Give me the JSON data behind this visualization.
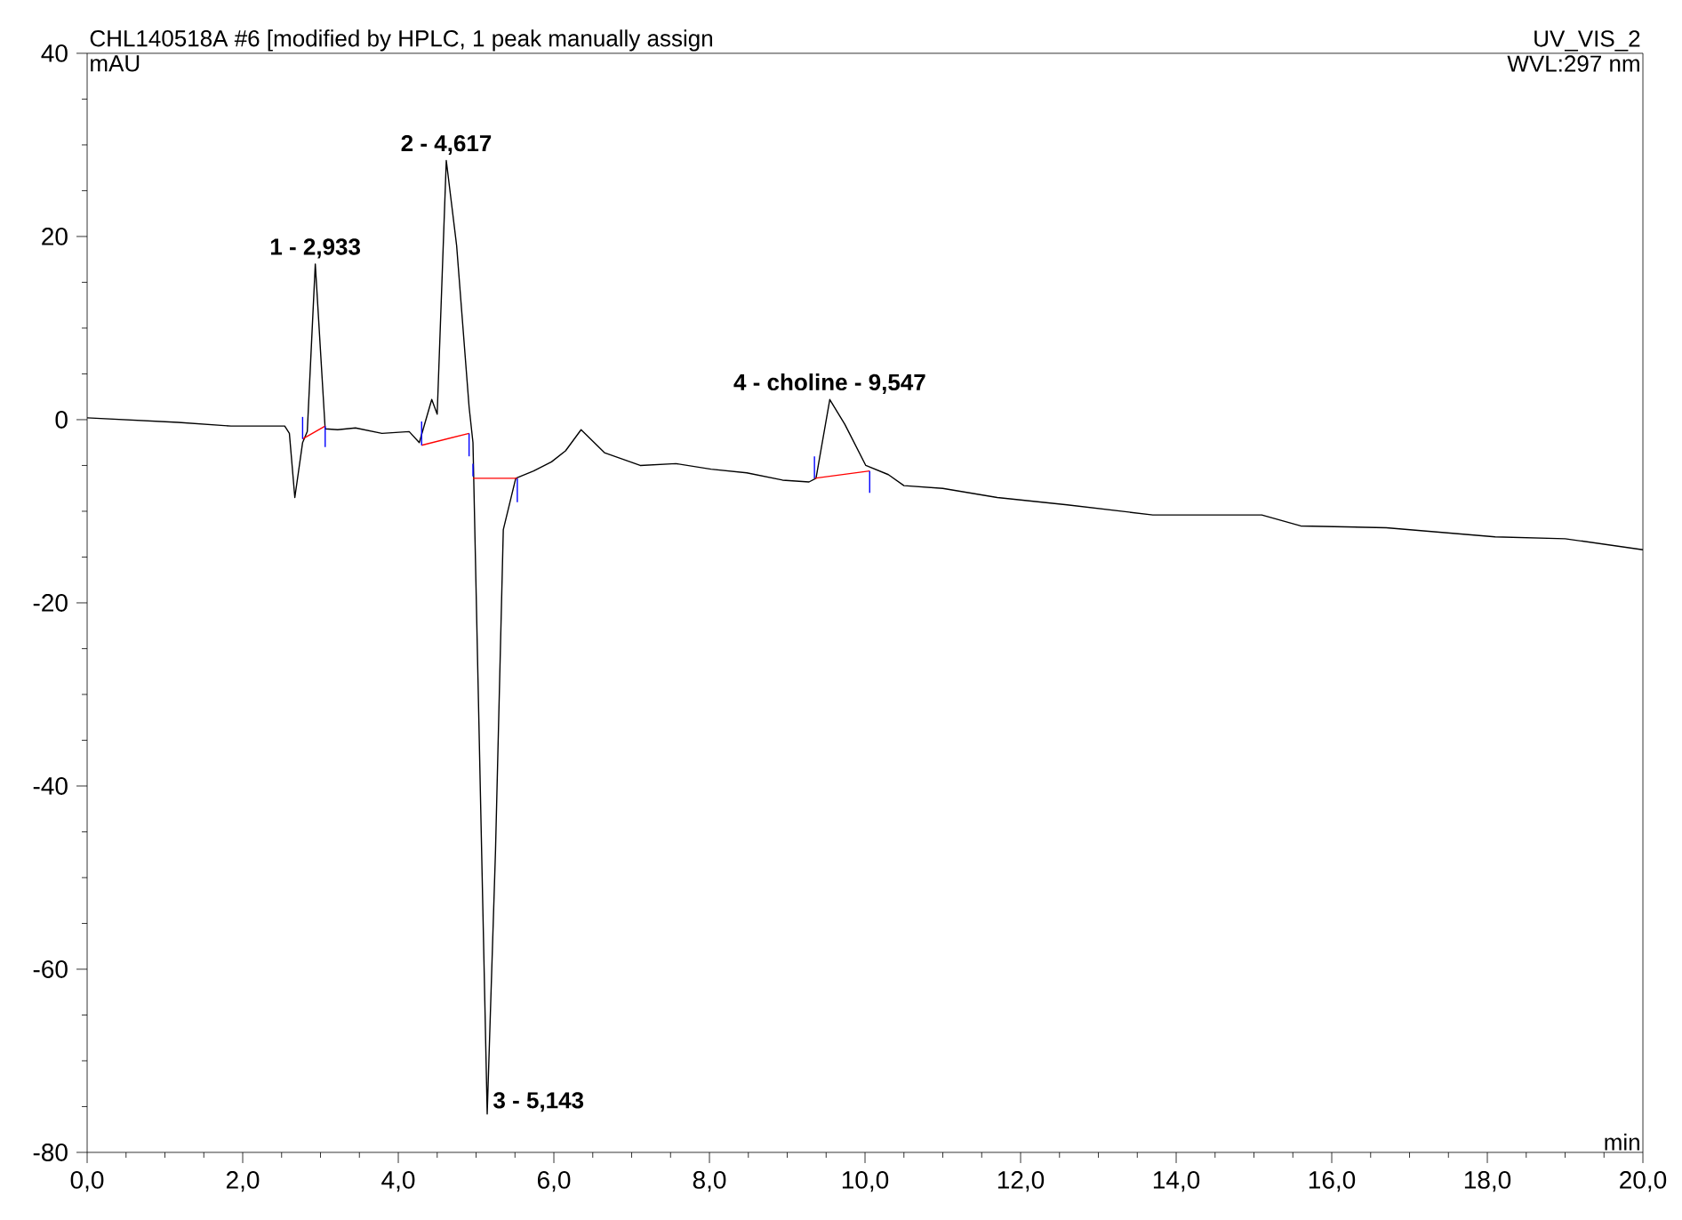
{
  "chart_data": {
    "type": "line",
    "title": "CHL140518A #6 [modified by HPLC, 1 peak manually assign",
    "xlabel": "min",
    "ylabel": "mAU",
    "xlim": [
      0,
      20
    ],
    "ylim": [
      -80,
      40
    ],
    "xticks": [
      {
        "value": 0,
        "label": "0,0"
      },
      {
        "value": 2,
        "label": "2,0"
      },
      {
        "value": 4,
        "label": "4,0"
      },
      {
        "value": 6,
        "label": "6,0"
      },
      {
        "value": 8,
        "label": "8,0"
      },
      {
        "value": 10,
        "label": "10,0"
      },
      {
        "value": 12,
        "label": "12,0"
      },
      {
        "value": 14,
        "label": "14,0"
      },
      {
        "value": 16,
        "label": "16,0"
      },
      {
        "value": 18,
        "label": "18,0"
      },
      {
        "value": 20,
        "label": "20,0"
      }
    ],
    "yticks": [
      -80,
      -60,
      -40,
      -20,
      0,
      20,
      40
    ],
    "grid": false,
    "legend": false,
    "marker": "none",
    "line_style": "solid",
    "series": [
      {
        "color": "#000000",
        "x": [
          0.0,
          1.17,
          1.85,
          2.54,
          2.6,
          2.67,
          2.77,
          2.83,
          2.933,
          3.06,
          3.22,
          3.45,
          3.79,
          4.14,
          4.27,
          4.43,
          4.5,
          4.617,
          4.75,
          4.91,
          4.96,
          5.143,
          5.25,
          5.35,
          5.51,
          5.74,
          5.97,
          6.15,
          6.35,
          6.65,
          7.11,
          7.57,
          8.02,
          8.48,
          8.94,
          9.28,
          9.37,
          9.547,
          9.74,
          10.01,
          10.3,
          10.5,
          11.0,
          11.7,
          12.6,
          13.7,
          15.1,
          15.6,
          16.7,
          18.1,
          19.0,
          20.0
        ],
        "values": [
          0.2,
          -0.3,
          -0.7,
          -0.7,
          -1.5,
          -8.5,
          -2.5,
          -1.3,
          17.0,
          -1.0,
          -1.1,
          -0.9,
          -1.5,
          -1.3,
          -2.5,
          2.2,
          0.6,
          28.3,
          19.0,
          1.4,
          -2.5,
          -75.8,
          -47.0,
          -12.0,
          -6.4,
          -5.6,
          -4.6,
          -3.4,
          -1.1,
          -3.6,
          -5.0,
          -4.8,
          -5.4,
          -5.8,
          -6.6,
          -6.8,
          -6.4,
          2.2,
          -0.5,
          -5.0,
          -6.0,
          -7.2,
          -7.5,
          -8.5,
          -9.3,
          -10.4,
          -10.4,
          -11.6,
          -11.8,
          -12.8,
          -13.0,
          -14.2
        ]
      },
      {
        "color": "#ff0000",
        "x": [
          2.77,
          3.06
        ],
        "values": [
          -2.1,
          -0.7
        ]
      },
      {
        "color": "#ff0000",
        "x": [
          4.3,
          4.91
        ],
        "values": [
          -2.8,
          -1.5
        ]
      },
      {
        "color": "#ff0000",
        "x": [
          4.96,
          5.53
        ],
        "values": [
          -6.4,
          -6.4
        ]
      },
      {
        "color": "#ff0000",
        "x": [
          9.35,
          10.06
        ],
        "values": [
          -6.4,
          -5.6
        ]
      },
      {
        "color": "#0000ff",
        "x": [
          2.77,
          2.77
        ],
        "values": [
          -2.1,
          0.3
        ]
      },
      {
        "color": "#0000ff",
        "x": [
          3.06,
          3.06
        ],
        "values": [
          -0.7,
          -3.0
        ]
      },
      {
        "color": "#0000ff",
        "x": [
          4.3,
          4.3
        ],
        "values": [
          -2.8,
          -0.2
        ]
      },
      {
        "color": "#0000ff",
        "x": [
          4.91,
          4.91
        ],
        "values": [
          -1.5,
          -4.0
        ]
      },
      {
        "color": "#0000ff",
        "x": [
          4.96,
          4.96
        ],
        "values": [
          -4.8,
          -6.2
        ]
      },
      {
        "color": "#0000ff",
        "x": [
          5.53,
          5.53
        ],
        "values": [
          -6.4,
          -9.0
        ]
      },
      {
        "color": "#0000ff",
        "x": [
          9.35,
          9.35
        ],
        "values": [
          -6.4,
          -4.0
        ]
      },
      {
        "color": "#0000ff",
        "x": [
          10.06,
          10.06
        ],
        "values": [
          -5.6,
          -8.0
        ]
      }
    ],
    "annotations": [
      "UV_VIS_2",
      "WVL:297 nm",
      {
        "text": "1 - 2,933",
        "x": 2.933,
        "y": 17.0
      },
      {
        "text": "2 - 4,617",
        "x": 4.617,
        "y": 28.3
      },
      {
        "text": "3 - 5,143",
        "x": 5.143,
        "y": -75.8
      },
      {
        "text": "4 - choline - 9,547",
        "x": 9.547,
        "y": 2.2
      }
    ]
  }
}
